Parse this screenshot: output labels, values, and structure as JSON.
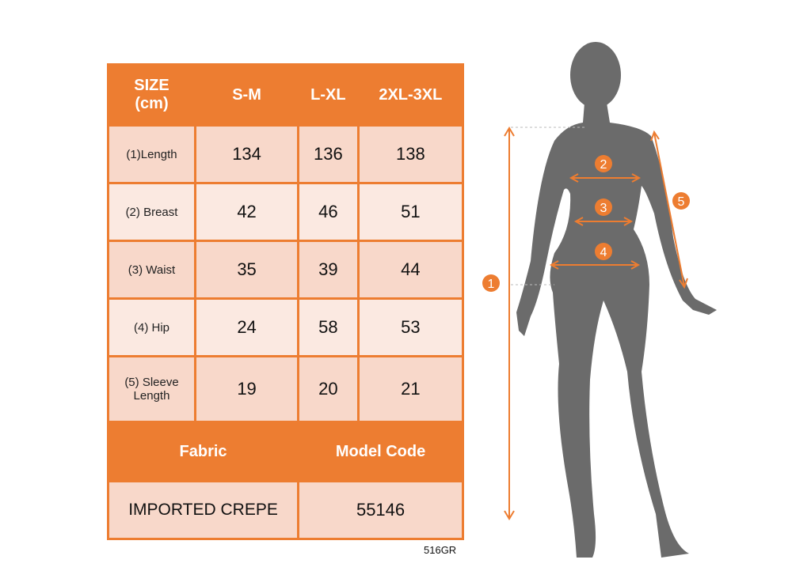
{
  "table": {
    "headers": [
      "SIZE\n(cm)",
      "S-M",
      "L-XL",
      "2XL-3XL"
    ],
    "header_line1": "SIZE",
    "header_line2": "(cm)",
    "rows": [
      {
        "label": "(1)Length",
        "values": [
          "134",
          "136",
          "138"
        ]
      },
      {
        "label": "(2) Breast",
        "values": [
          "42",
          "46",
          "51"
        ]
      },
      {
        "label": "(3) Waist",
        "values": [
          "35",
          "39",
          "44"
        ]
      },
      {
        "label": "(4) Hip",
        "values": [
          "24",
          "58",
          "53"
        ]
      },
      {
        "label": "(5) Sleeve Length",
        "values": [
          "19",
          "20",
          "21"
        ]
      }
    ],
    "fabric_label": "Fabric",
    "model_code_label": "Model Code",
    "fabric_value": "IMPORTED CREPE",
    "model_code_value": "55146"
  },
  "product_code": "516GR",
  "markers": [
    "1",
    "2",
    "3",
    "4",
    "5"
  ],
  "colors": {
    "accent": "#ED7D31",
    "cell_dark": "#F8D8CA",
    "cell_light": "#FBE9E1",
    "silhouette": "#6b6b6b"
  }
}
